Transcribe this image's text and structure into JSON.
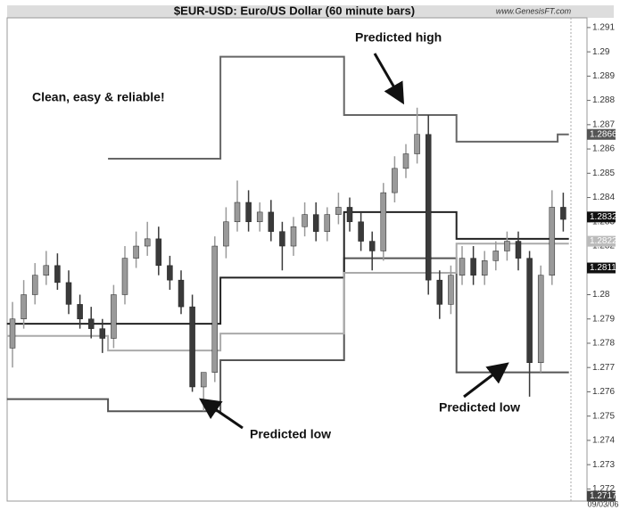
{
  "chart_data": {
    "type": "candlestick",
    "title": "$EUR-USD:  Euro/US Dollar  (60 minute bars)",
    "watermark": "www.GenesisFT.com",
    "date_label": "09/03/06",
    "annotations": [
      "Clean, easy & reliable!",
      "Predicted high",
      "Predicted low",
      "Predicted low"
    ],
    "ylim": [
      1.2715,
      1.2914
    ],
    "yticks": [
      1.272,
      1.273,
      1.274,
      1.275,
      1.276,
      1.277,
      1.278,
      1.279,
      1.28,
      1.281,
      1.282,
      1.283,
      1.284,
      1.285,
      1.286,
      1.287,
      1.288,
      1.289,
      1.29,
      1.291
    ],
    "up_color": "#9a9a9a",
    "down_color": "#3a3a3a",
    "open": [
      1.2778,
      1.279,
      1.28,
      1.2808,
      1.2812,
      1.2805,
      1.2796,
      1.279,
      1.2786,
      1.2782,
      1.28,
      1.2815,
      1.282,
      1.2823,
      1.2812,
      1.2806,
      1.2795,
      1.2762,
      1.2768,
      1.282,
      1.283,
      1.2838,
      1.283,
      1.2834,
      1.2826,
      1.282,
      1.2828,
      1.2833,
      1.2826,
      1.2833,
      1.2836,
      1.283,
      1.2822,
      1.2818,
      1.2842,
      1.2852,
      1.2858,
      1.2866,
      1.2806,
      1.2796,
      1.2808,
      1.2815,
      1.2808,
      1.2814,
      1.2818,
      1.2822,
      1.2815,
      1.2772,
      1.2808,
      1.2836
    ],
    "high": [
      1.2797,
      1.2806,
      1.2813,
      1.2818,
      1.2817,
      1.281,
      1.28,
      1.2795,
      1.279,
      1.2804,
      1.282,
      1.2826,
      1.283,
      1.2828,
      1.2816,
      1.281,
      1.28,
      1.2768,
      1.2824,
      1.2836,
      1.2847,
      1.2843,
      1.2838,
      1.2839,
      1.283,
      1.2832,
      1.2838,
      1.2838,
      1.2836,
      1.2842,
      1.284,
      1.2834,
      1.2826,
      1.2846,
      1.2857,
      1.2862,
      1.2877,
      1.2874,
      1.281,
      1.2812,
      1.282,
      1.282,
      1.2818,
      1.2822,
      1.2826,
      1.2826,
      1.2818,
      1.2812,
      1.2843,
      1.2842
    ],
    "low": [
      1.277,
      1.2786,
      1.2796,
      1.2804,
      1.2802,
      1.2792,
      1.2786,
      1.2782,
      1.2776,
      1.2778,
      1.2796,
      1.2811,
      1.2816,
      1.2808,
      1.2802,
      1.2792,
      1.276,
      1.2752,
      1.2764,
      1.2815,
      1.2826,
      1.2826,
      1.2826,
      1.2822,
      1.281,
      1.2816,
      1.2824,
      1.2822,
      1.2822,
      1.2829,
      1.2826,
      1.2818,
      1.281,
      1.2814,
      1.2838,
      1.2848,
      1.2854,
      1.28,
      1.279,
      1.2792,
      1.2804,
      1.2804,
      1.2804,
      1.281,
      1.2814,
      1.281,
      1.2758,
      1.2768,
      1.2804,
      1.2826
    ],
    "close": [
      1.279,
      1.28,
      1.2808,
      1.2812,
      1.2805,
      1.2796,
      1.279,
      1.2786,
      1.2782,
      1.28,
      1.2815,
      1.282,
      1.2823,
      1.2812,
      1.2806,
      1.2795,
      1.2762,
      1.2768,
      1.282,
      1.283,
      1.2838,
      1.283,
      1.2834,
      1.2826,
      1.282,
      1.2828,
      1.2833,
      1.2826,
      1.2833,
      1.2836,
      1.283,
      1.2822,
      1.2818,
      1.2842,
      1.2852,
      1.2858,
      1.2866,
      1.2806,
      1.2796,
      1.2808,
      1.2815,
      1.2808,
      1.2814,
      1.2818,
      1.2822,
      1.2815,
      1.2772,
      1.2808,
      1.2836,
      1.2831
    ],
    "series": [
      {
        "color": "#666666",
        "values": [
          null,
          null,
          null,
          null,
          null,
          null,
          null,
          null,
          null,
          1.2856,
          1.2856,
          1.2856,
          1.2856,
          1.2856,
          1.2856,
          1.2856,
          1.2856,
          1.2856,
          1.2856,
          1.2898,
          1.2898,
          1.2898,
          1.2898,
          1.2898,
          1.2898,
          1.2898,
          1.2898,
          1.2898,
          1.2898,
          1.2898,
          1.2874,
          1.2874,
          1.2874,
          1.2874,
          1.2874,
          1.2874,
          1.2874,
          1.2874,
          1.2874,
          1.2874,
          1.2863,
          1.2863,
          1.2863,
          1.2863,
          1.2863,
          1.2863,
          1.2863,
          1.2863,
          1.2863,
          1.2866
        ]
      },
      {
        "color": "#555555",
        "values": [
          1.2757,
          1.2757,
          1.2757,
          1.2757,
          1.2757,
          1.2757,
          1.2757,
          1.2757,
          1.2757,
          1.2752,
          1.2752,
          1.2752,
          1.2752,
          1.2752,
          1.2752,
          1.2752,
          1.2752,
          1.2752,
          1.2752,
          1.2773,
          1.2773,
          1.2773,
          1.2773,
          1.2773,
          1.2773,
          1.2773,
          1.2773,
          1.2773,
          1.2773,
          1.2773,
          1.2815,
          1.2815,
          1.2815,
          1.2815,
          1.2815,
          1.2815,
          1.2815,
          1.2815,
          1.2815,
          1.2815,
          1.2768,
          1.2768,
          1.2768,
          1.2768,
          1.2768,
          1.2768,
          1.2768,
          1.2768,
          1.2768,
          1.2768
        ]
      },
      {
        "color": "#222222",
        "values": [
          1.2788,
          1.2788,
          1.2788,
          1.2788,
          1.2788,
          1.2788,
          1.2788,
          1.2788,
          1.2788,
          1.2788,
          1.2788,
          1.2788,
          1.2788,
          1.2788,
          1.2788,
          1.2788,
          1.2788,
          1.2788,
          1.2788,
          1.2807,
          1.2807,
          1.2807,
          1.2807,
          1.2807,
          1.2807,
          1.2807,
          1.2807,
          1.2807,
          1.2807,
          1.2807,
          1.2834,
          1.2834,
          1.2834,
          1.2834,
          1.2834,
          1.2834,
          1.2834,
          1.2834,
          1.2834,
          1.2834,
          1.2823,
          1.2823,
          1.2823,
          1.2823,
          1.2823,
          1.2823,
          1.2823,
          1.2823,
          1.2823,
          1.2823
        ]
      },
      {
        "color": "#aaaaaa",
        "values": [
          1.2783,
          1.2783,
          1.2783,
          1.2783,
          1.2783,
          1.2783,
          1.2783,
          1.2783,
          1.2783,
          1.2777,
          1.2777,
          1.2777,
          1.2777,
          1.2777,
          1.2777,
          1.2777,
          1.2777,
          1.2777,
          1.2777,
          1.2784,
          1.2784,
          1.2784,
          1.2784,
          1.2784,
          1.2784,
          1.2784,
          1.2784,
          1.2784,
          1.2784,
          1.2784,
          1.2809,
          1.2809,
          1.2809,
          1.2809,
          1.2809,
          1.2809,
          1.2809,
          1.2809,
          1.2809,
          1.2809,
          1.2821,
          1.2821,
          1.2821,
          1.2821,
          1.2821,
          1.2821,
          1.2821,
          1.2821,
          1.2821,
          1.2821
        ]
      }
    ],
    "price_labels": [
      {
        "value": 1.2866,
        "color": "#555555"
      },
      {
        "value": 1.2832,
        "color": "#111111"
      },
      {
        "value": 1.2822,
        "color": "#bbbbbb"
      },
      {
        "value": 1.2811,
        "color": "#111111"
      },
      {
        "value": 1.2717,
        "color": "#444444"
      }
    ]
  }
}
